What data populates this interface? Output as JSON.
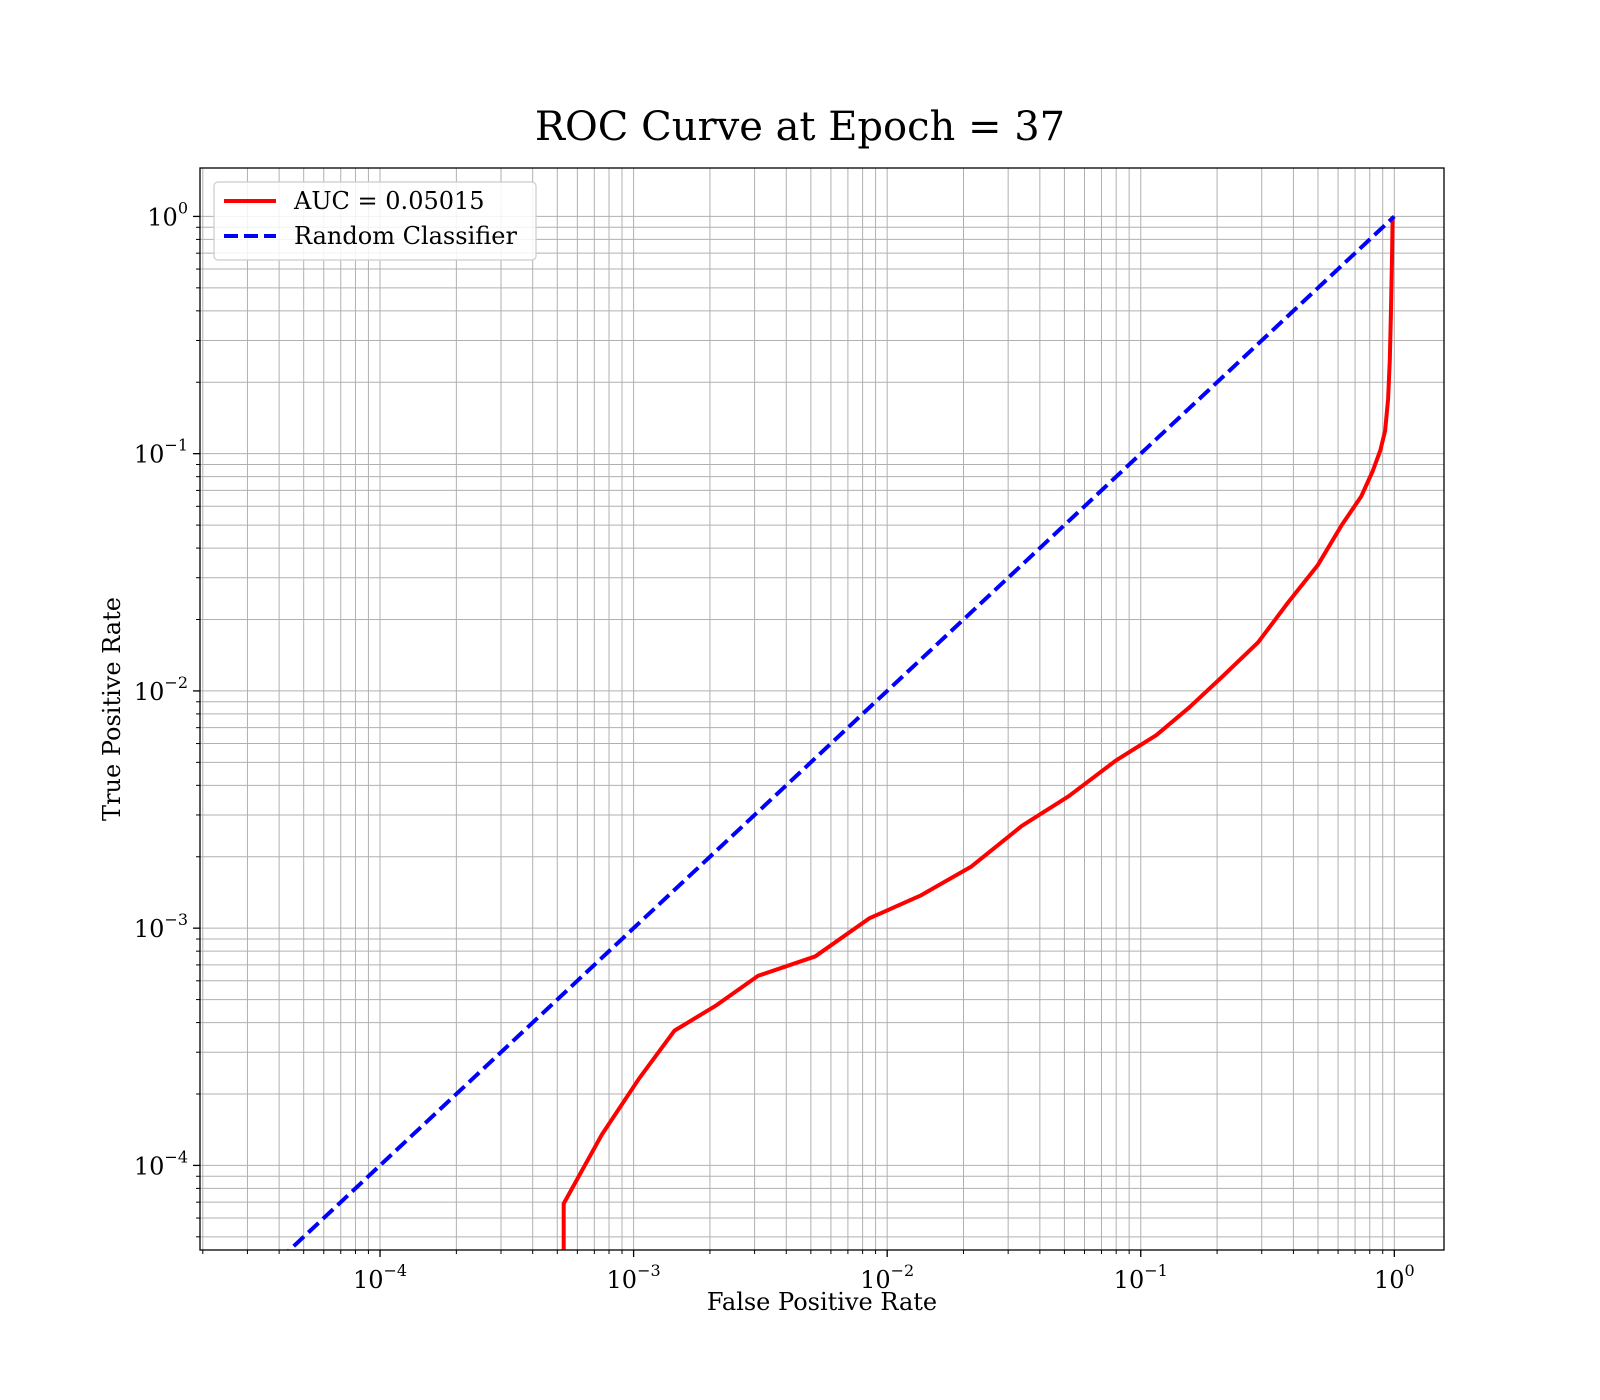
{
  "chart_data": {
    "type": "line",
    "title": "ROC Curve at Epoch = 37",
    "xlabel": "False Positive Rate",
    "ylabel": "True Positive Rate",
    "xscale": "log",
    "yscale": "log",
    "xlim": [
      1.95e-05,
      1.57
    ],
    "ylim": [
      4.4e-05,
      1.6
    ],
    "grid": "both-major-minor",
    "legend_position": "top-left",
    "x_ticks": [
      {
        "value": 0.0001,
        "base": "10",
        "exp": "−4"
      },
      {
        "value": 0.001,
        "base": "10",
        "exp": "−3"
      },
      {
        "value": 0.01,
        "base": "10",
        "exp": "−2"
      },
      {
        "value": 0.1,
        "base": "10",
        "exp": "−1"
      },
      {
        "value": 1,
        "base": "10",
        "exp": "0"
      }
    ],
    "y_ticks": [
      {
        "value": 0.0001,
        "base": "10",
        "exp": "−4"
      },
      {
        "value": 0.001,
        "base": "10",
        "exp": "−3"
      },
      {
        "value": 0.01,
        "base": "10",
        "exp": "−2"
      },
      {
        "value": 0.1,
        "base": "10",
        "exp": "−1"
      },
      {
        "value": 1,
        "base": "10",
        "exp": "0"
      }
    ],
    "series": [
      {
        "name": "AUC = 0.05015",
        "color": "#ff0000",
        "style": "solid",
        "points": [
          [
            0.00053,
            4.4e-05
          ],
          [
            0.00053,
            6.9e-05
          ],
          [
            0.00075,
            0.000135
          ],
          [
            0.00105,
            0.000232
          ],
          [
            0.00145,
            0.00037
          ],
          [
            0.0021,
            0.00047
          ],
          [
            0.0031,
            0.00063
          ],
          [
            0.0052,
            0.00076
          ],
          [
            0.0085,
            0.0011
          ],
          [
            0.0135,
            0.00137
          ],
          [
            0.0215,
            0.00182
          ],
          [
            0.034,
            0.0027
          ],
          [
            0.052,
            0.0036
          ],
          [
            0.08,
            0.0051
          ],
          [
            0.115,
            0.0065
          ],
          [
            0.155,
            0.0085
          ],
          [
            0.21,
            0.0115
          ],
          [
            0.29,
            0.016
          ],
          [
            0.38,
            0.0235
          ],
          [
            0.5,
            0.034
          ],
          [
            0.62,
            0.05
          ],
          [
            0.74,
            0.066
          ],
          [
            0.82,
            0.084
          ],
          [
            0.88,
            0.103
          ],
          [
            0.92,
            0.125
          ],
          [
            0.945,
            0.17
          ],
          [
            0.96,
            0.25
          ],
          [
            0.97,
            0.4
          ],
          [
            0.98,
            0.7
          ],
          [
            0.985,
            1.0
          ]
        ]
      },
      {
        "name": "Random Classifier",
        "color": "#0000ff",
        "style": "dashed",
        "points": [
          [
            4e-05,
            4e-05
          ],
          [
            1.0,
            1.0
          ]
        ]
      }
    ]
  }
}
